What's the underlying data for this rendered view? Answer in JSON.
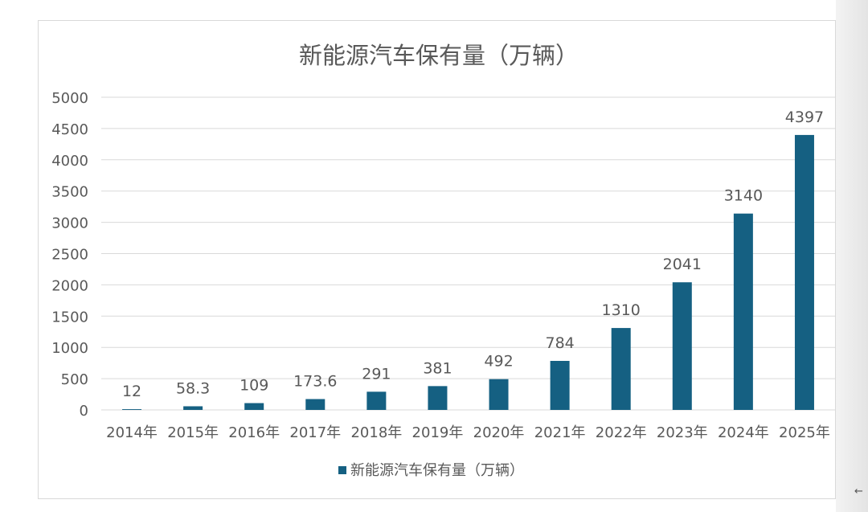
{
  "chart_data": {
    "type": "bar",
    "title": "新能源汽车保有量（万辆）",
    "categories": [
      "2014年",
      "2015年",
      "2016年",
      "2017年",
      "2018年",
      "2019年",
      "2020年",
      "2021年",
      "2022年",
      "2023年",
      "2024年",
      "2025年"
    ],
    "series": [
      {
        "name": "新能源汽车保有量（万辆）",
        "values": [
          12,
          58.3,
          109,
          173.6,
          291,
          381,
          492,
          784,
          1310,
          2041,
          3140,
          4397
        ],
        "labels": [
          "12",
          "58.3",
          "109",
          "173.6",
          "291",
          "381",
          "492",
          "784",
          "1310",
          "2041",
          "3140",
          "4397"
        ]
      }
    ],
    "yticks": [
      "0",
      "500",
      "1000",
      "1500",
      "2000",
      "2500",
      "3000",
      "3500",
      "4000",
      "4500",
      "5000"
    ],
    "ylim": [
      0,
      5000
    ],
    "grid": true,
    "legend_position": "bottom",
    "bar_color": "#156082",
    "grid_color": "#d9d9d9",
    "text_color": "#595959"
  },
  "ui": {
    "scroll_arrow": "←"
  }
}
